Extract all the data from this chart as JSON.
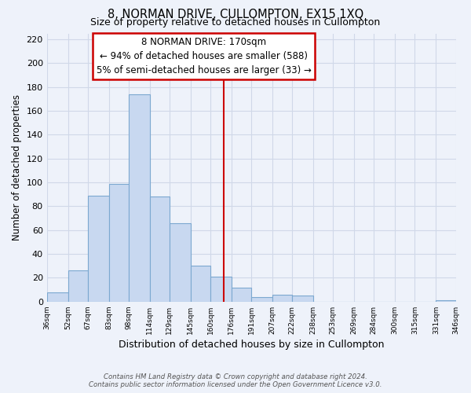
{
  "title": "8, NORMAN DRIVE, CULLOMPTON, EX15 1XQ",
  "subtitle": "Size of property relative to detached houses in Cullompton",
  "xlabel": "Distribution of detached houses by size in Cullompton",
  "ylabel": "Number of detached properties",
  "bin_edges": [
    36,
    52,
    67,
    83,
    98,
    114,
    129,
    145,
    160,
    176,
    191,
    207,
    222,
    238,
    253,
    269,
    284,
    300,
    315,
    331,
    346
  ],
  "bin_labels": [
    "36sqm",
    "52sqm",
    "67sqm",
    "83sqm",
    "98sqm",
    "114sqm",
    "129sqm",
    "145sqm",
    "160sqm",
    "176sqm",
    "191sqm",
    "207sqm",
    "222sqm",
    "238sqm",
    "253sqm",
    "269sqm",
    "284sqm",
    "300sqm",
    "315sqm",
    "331sqm",
    "346sqm"
  ],
  "counts": [
    8,
    26,
    89,
    99,
    174,
    88,
    66,
    30,
    21,
    12,
    4,
    6,
    5,
    0,
    0,
    0,
    0,
    0,
    0,
    1
  ],
  "bar_color": "#c8d8f0",
  "bar_edge_color": "#7ca8d0",
  "reference_line_x": 170,
  "reference_line_color": "#cc0000",
  "ylim": [
    0,
    225
  ],
  "yticks": [
    0,
    20,
    40,
    60,
    80,
    100,
    120,
    140,
    160,
    180,
    200,
    220
  ],
  "annotation_title": "8 NORMAN DRIVE: 170sqm",
  "annotation_line1": "← 94% of detached houses are smaller (588)",
  "annotation_line2": "5% of semi-detached houses are larger (33) →",
  "annotation_box_color": "#ffffff",
  "annotation_box_edge_color": "#cc0000",
  "footnote1": "Contains HM Land Registry data © Crown copyright and database right 2024.",
  "footnote2": "Contains public sector information licensed under the Open Government Licence v3.0.",
  "background_color": "#eef2fa",
  "grid_color": "#d0d8e8",
  "title_fontsize": 10.5,
  "subtitle_fontsize": 9,
  "xlabel_fontsize": 9,
  "ylabel_fontsize": 8.5
}
